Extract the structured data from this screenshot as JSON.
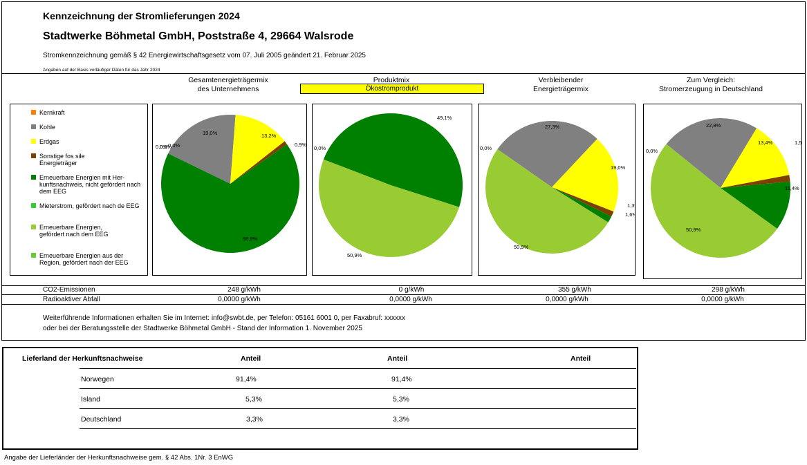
{
  "header": {
    "title": "Kennzeichnung der Stromlieferungen 2024",
    "company": "Stadtwerke Böhmetal GmbH, Poststraße 4, 29664 Walsrode",
    "law": "Stromkennzeichnung gemäß § 42 Energiewirtschaftsgesetz vom 07. Juli 2005 geändert 21. Februar 2025",
    "note": "Angaben auf der Basis vorläufiger Daten für das Jahr 2024"
  },
  "columns": {
    "c1": [
      "Gesamtenergieträgermix",
      "des Unternehmens"
    ],
    "c2": [
      "Produktmix",
      "Ökostromprodukt"
    ],
    "c3": [
      "Verbleibender",
      "Energieträgermix"
    ],
    "c4": [
      "Zum Vergleich:",
      "Stromerzeugung in Deutschland"
    ]
  },
  "legend": [
    {
      "label": "Kernkraft",
      "color": "#ff8000"
    },
    {
      "label": "Kohle",
      "color": "#808080"
    },
    {
      "label": "Erdgas",
      "color": "#ffff00"
    },
    {
      "label": "Sonstige fos sile Energieträger",
      "color": "#7f3f00"
    },
    {
      "label": "Erneuerbare Energien mit Her-kunftsnachweis, nicht gefördert nach dem EEG",
      "color": "#008000"
    },
    {
      "label": "Mieterstrom, gefördert nach de EEG",
      "color": "#33cc33"
    },
    {
      "label": "Erneuerbare Energien, gefördert nach dem EEG",
      "color": "#99cc33"
    },
    {
      "label": "Erneuerbare Energien aus der Region, gefördert nach der EEG",
      "color": "#66cc33"
    }
  ],
  "chart_data": [
    {
      "type": "pie",
      "name": "Gesamtenergieträgermix des Unternehmens",
      "slices": [
        {
          "label": "Kernkraft",
          "value": 0.0,
          "text": "0,0%"
        },
        {
          "label": "Kohle",
          "value": 19.0,
          "text": "19,0%"
        },
        {
          "label": "Erdgas",
          "value": 13.2,
          "text": "13,2%"
        },
        {
          "label": "Sonstige fossile Energieträger",
          "value": 0.9,
          "text": "0,9%"
        },
        {
          "label": "Erneuerbare Energien mit Herkunftsnachweis",
          "value": 66.9,
          "text": "66,9%"
        },
        {
          "label": "Mieterstrom",
          "value": 0.0,
          "text": "0,0%"
        },
        {
          "label": "Erneuerbare Energien, gefördert nach dem EEG",
          "value": 0.0,
          "text": "0,0%"
        }
      ]
    },
    {
      "type": "pie",
      "name": "Produktmix Ökostromprodukt",
      "slices": [
        {
          "label": "Kernkraft",
          "value": 0.0,
          "text": "0,0%"
        },
        {
          "label": "Erneuerbare Energien mit Herkunftsnachweis",
          "value": 49.1,
          "text": "49,1%"
        },
        {
          "label": "Erneuerbare Energien, gefördert nach dem EEG",
          "value": 50.9,
          "text": "50,9%"
        }
      ]
    },
    {
      "type": "pie",
      "name": "Verbleibender Energieträgermix",
      "slices": [
        {
          "label": "Kernkraft",
          "value": 0.0,
          "text": "0,0%"
        },
        {
          "label": "Kohle",
          "value": 27.3,
          "text": "27,3%"
        },
        {
          "label": "Erdgas",
          "value": 19.0,
          "text": "19,0%"
        },
        {
          "label": "Sonstige fossile Energieträger",
          "value": 1.3,
          "text": "1,3%"
        },
        {
          "label": "Erneuerbare Energien mit Herkunftsnachweis",
          "value": 1.6,
          "text": "1,6%"
        },
        {
          "label": "Erneuerbare Energien, gefördert nach dem EEG",
          "value": 50.9,
          "text": "50,9%"
        }
      ]
    },
    {
      "type": "pie",
      "name": "Stromerzeugung in Deutschland",
      "slices": [
        {
          "label": "Kernkraft",
          "value": 0.0,
          "text": "0,0%"
        },
        {
          "label": "Kohle",
          "value": 22.8,
          "text": "22,8%"
        },
        {
          "label": "Erdgas",
          "value": 13.4,
          "text": "13,4%"
        },
        {
          "label": "Sonstige fossile Energieträger",
          "value": 1.5,
          "text": "1,5%"
        },
        {
          "label": "Erneuerbare Energien mit Herkunftsnachweis",
          "value": 11.4,
          "text": "11,4%"
        },
        {
          "label": "Erneuerbare Energien, gefördert nach dem EEG",
          "value": 50.9,
          "text": "50,9%"
        }
      ]
    }
  ],
  "emissions": {
    "co2_label": "CO2-Emissionen",
    "waste_label": "Radioaktiver Abfall",
    "co2": [
      "248 g/kWh",
      "0 g/kWh",
      "355 g/kWh",
      "298 g/kWh"
    ],
    "waste": [
      "0,0000 g/kWh",
      "0,0000 g/kWh",
      "0,0000 g/kWh",
      "0,0000 g/kWh"
    ]
  },
  "footer": {
    "line1": "Weiterführende Informationen erhalten Sie im Internet: info@swbt.de, per Telefon: 05161 6001 0, per Faxabruf: xxxxxx",
    "line2": "oder bei der Beratungsstelle der Stadtwerke Böhmetal GmbH - Stand der Information 1. November 2025"
  },
  "origin_table": {
    "header": "Lieferland der Herkunftsnachweise",
    "col": "Anteil",
    "rows": [
      {
        "country": "Norwegen",
        "a": "91,4%",
        "b": "91,4%"
      },
      {
        "country": "Island",
        "a": "5,3%",
        "b": "5,3%"
      },
      {
        "country": "Deutschland",
        "a": "3,3%",
        "b": "3,3%"
      }
    ]
  },
  "bottom_note": "Angabe der Lieferländer der Herkunftsnachweise gem. § 42 Abs. 1Nr. 3 EnWG"
}
